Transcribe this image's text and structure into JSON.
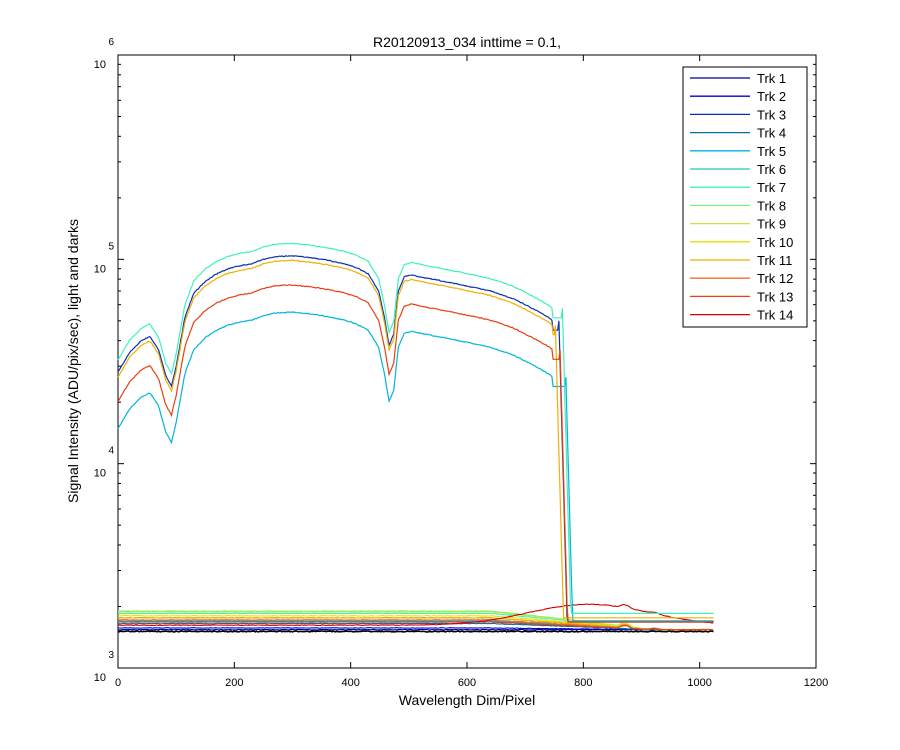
{
  "chart_data": {
    "type": "line",
    "title": "R20120913_034 inttime = 0.1,",
    "xlabel": "Wavelength Dim/Pixel",
    "ylabel": "Signal Intensity (ADU/pix/sec), light and darks",
    "xlim": [
      0,
      1200
    ],
    "ylim": [
      1000,
      1000000
    ],
    "yscale": "log",
    "grid": false,
    "legend_position": "top-right",
    "x_ticks": [
      0,
      200,
      400,
      600,
      800,
      1000,
      1200
    ],
    "x_tick_labels": [
      "0",
      "200",
      "400",
      "600",
      "800",
      "1000",
      "1200"
    ],
    "y_ticks": [
      1000,
      10000,
      100000,
      1000000
    ],
    "y_tick_labels": [
      {
        "base": "10",
        "exp": "3"
      },
      {
        "base": "10",
        "exp": "4"
      },
      {
        "base": "10",
        "exp": "5"
      },
      {
        "base": "10",
        "exp": "6"
      }
    ],
    "series": [
      {
        "name": "Trk 1",
        "color": "#00008f",
        "visible": false,
        "dark_level": 1540,
        "ripple": 0.4
      },
      {
        "name": "Trk 2",
        "color": "#0000d0",
        "visible": false,
        "dark_level": 1570,
        "ripple": 0.5
      },
      {
        "name": "Trk 3",
        "color": "#0a2fb4",
        "visible": true,
        "scale": 1.0,
        "x_edge": 758,
        "dark_level": 1680,
        "ripple": 1.0
      },
      {
        "name": "Trk 4",
        "color": "#0a6fa0",
        "visible": false,
        "dark_level": 1650,
        "ripple": 0.5
      },
      {
        "name": "Trk 5",
        "color": "#00b4dc",
        "visible": true,
        "scale": 0.53,
        "x_edge": 770,
        "dark_level": 1700,
        "ripple": 1.0
      },
      {
        "name": "Trk 6",
        "color": "#20c8c8",
        "visible": false,
        "dark_level": 1760,
        "ripple": 0.6
      },
      {
        "name": "Trk 7",
        "color": "#40f0c0",
        "visible": true,
        "scale": 1.15,
        "x_edge": 764,
        "dark_level": 1850,
        "ripple": 1.0
      },
      {
        "name": "Trk 8",
        "color": "#80f080",
        "visible": false,
        "dark_level": 1900,
        "ripple": 0.7
      },
      {
        "name": "Trk 9",
        "color": "#c0e840",
        "visible": false,
        "dark_level": 1880,
        "ripple": 0.7
      },
      {
        "name": "Trk 10",
        "color": "#e8e000",
        "visible": false,
        "dark_level": 1800,
        "ripple": 0.6
      },
      {
        "name": "Trk 11",
        "color": "#f0b000",
        "visible": true,
        "scale": 0.95,
        "x_edge": 752,
        "dark_level": 1760,
        "ripple": 1.0
      },
      {
        "name": "Trk 12",
        "color": "#f07020",
        "visible": false,
        "dark_level": 1720,
        "ripple": 0.6
      },
      {
        "name": "Trk 13",
        "color": "#e84010",
        "visible": true,
        "scale": 0.72,
        "x_edge": 760,
        "dark_level": 1680,
        "ripple": 1.0
      },
      {
        "name": "Trk 14",
        "color": "#d00000",
        "visible": false,
        "dark_level": 1620,
        "ripple": 0.6,
        "hump_peak": 2050,
        "hump_center": 810
      }
    ],
    "reference_profile": {
      "x": [
        0,
        20,
        40,
        55,
        70,
        82,
        92,
        100,
        115,
        130,
        150,
        170,
        190,
        210,
        230,
        250,
        270,
        300,
        330,
        360,
        390,
        410,
        430,
        448,
        458,
        466,
        474,
        482,
        492,
        505,
        520,
        540,
        560,
        580,
        600,
        620,
        640,
        660,
        680,
        700,
        720,
        740,
        748
      ],
      "y": [
        28000,
        35000,
        40000,
        42000,
        36000,
        27000,
        24000,
        30000,
        52000,
        68000,
        78000,
        85000,
        90000,
        93000,
        95000,
        100000,
        103000,
        104000,
        102000,
        99000,
        95000,
        91000,
        85000,
        70000,
        52000,
        38000,
        43000,
        70000,
        82000,
        84000,
        82000,
        80000,
        78000,
        76000,
        74000,
        72000,
        70000,
        67000,
        64000,
        60000,
        56000,
        52000,
        50000
      ]
    },
    "dark_floor": 1510
  }
}
